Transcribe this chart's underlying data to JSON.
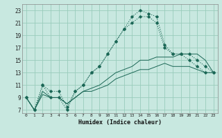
{
  "xlabel": "Humidex (Indice chaleur)",
  "bg_color": "#c8e8e0",
  "grid_color": "#99ccbb",
  "line_color": "#1a6655",
  "x_ticks": [
    0,
    1,
    2,
    3,
    4,
    5,
    6,
    7,
    8,
    9,
    10,
    11,
    12,
    13,
    14,
    15,
    16,
    17,
    18,
    19,
    20,
    21,
    22,
    23
  ],
  "y_ticks": [
    7,
    9,
    11,
    13,
    15,
    17,
    19,
    21,
    23
  ],
  "ylim": [
    6.5,
    24.0
  ],
  "xlim": [
    -0.5,
    23.5
  ],
  "series": {
    "main": [
      9,
      7,
      11,
      9,
      9,
      7,
      10,
      11,
      13,
      14,
      16,
      18,
      20,
      21,
      22,
      22,
      21,
      17,
      16,
      16,
      15,
      14,
      13,
      13
    ],
    "upper": [
      9,
      7,
      11,
      10,
      10,
      7.5,
      10,
      11,
      13,
      14,
      16,
      18,
      20,
      22,
      23,
      22.5,
      22,
      17.5,
      16,
      16,
      16,
      15,
      14,
      13
    ],
    "lower1": [
      9,
      7,
      10,
      9,
      9,
      8,
      9,
      10,
      10.5,
      11,
      12,
      13,
      13.5,
      14,
      15,
      15,
      15.5,
      15.5,
      15.5,
      16,
      16,
      16,
      15,
      13
    ],
    "lower2": [
      9,
      7,
      9.5,
      9,
      9,
      8,
      9,
      10,
      10,
      10.5,
      11,
      12,
      12.5,
      13,
      13.5,
      13.5,
      14,
      14.5,
      14,
      14,
      14,
      13.5,
      13,
      13
    ]
  }
}
